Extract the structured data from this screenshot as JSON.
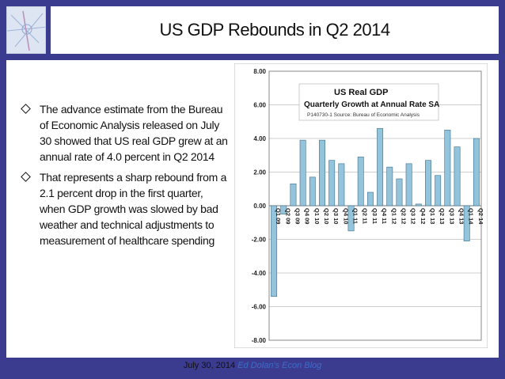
{
  "slide": {
    "title": "US GDP Rebounds in Q2 2014",
    "bullets": [
      "The advance estimate from the Bureau of Economic Analysis released on July 30 showed that US real GDP grew at an annual rate of 4.0 percent in Q2 2014",
      "That represents a sharp rebound from a 2.1 percent drop in the first quarter, when GDP growth was slowed by bad weather and technical adjustments to measurement of healthcare spending"
    ],
    "footer_date": "July 30, 2014",
    "footer_blog": "Ed Dolan's Econ Blog"
  },
  "chart_data": {
    "type": "bar",
    "title": "US  Real GDP",
    "subtitle": "Quarterly Growth at Annual Rate SA",
    "source": "P140730-1 Source: Bureau of Economic Analysis",
    "categories": [
      "Q1 09",
      "Q2 09",
      "Q3 09",
      "Q4 09",
      "Q1 10",
      "Q2 10",
      "Q3 10",
      "Q4 10",
      "Q1 11",
      "Q2 11",
      "Q3 11",
      "Q4 11",
      "Q1 12",
      "Q2 12",
      "Q3 12",
      "Q4 12",
      "Q1 13",
      "Q2 13",
      "Q3 13",
      "Q4 13",
      "Q1 14",
      "Q2 14"
    ],
    "values": [
      -5.4,
      -0.5,
      1.3,
      3.9,
      1.7,
      3.9,
      2.7,
      2.5,
      -1.5,
      2.9,
      0.8,
      4.6,
      2.3,
      1.6,
      2.5,
      0.1,
      2.7,
      1.8,
      4.5,
      3.5,
      -2.1,
      4.0
    ],
    "yticks": [
      "8.00",
      "6.00",
      "4.00",
      "2.00",
      "0.00",
      "-2.00",
      "-4.00",
      "-6.00",
      "-8.00"
    ],
    "ylim": [
      -8,
      8
    ],
    "bar_color": "#93c4dc",
    "bar_stroke": "#3f6f8a",
    "grid": true
  }
}
